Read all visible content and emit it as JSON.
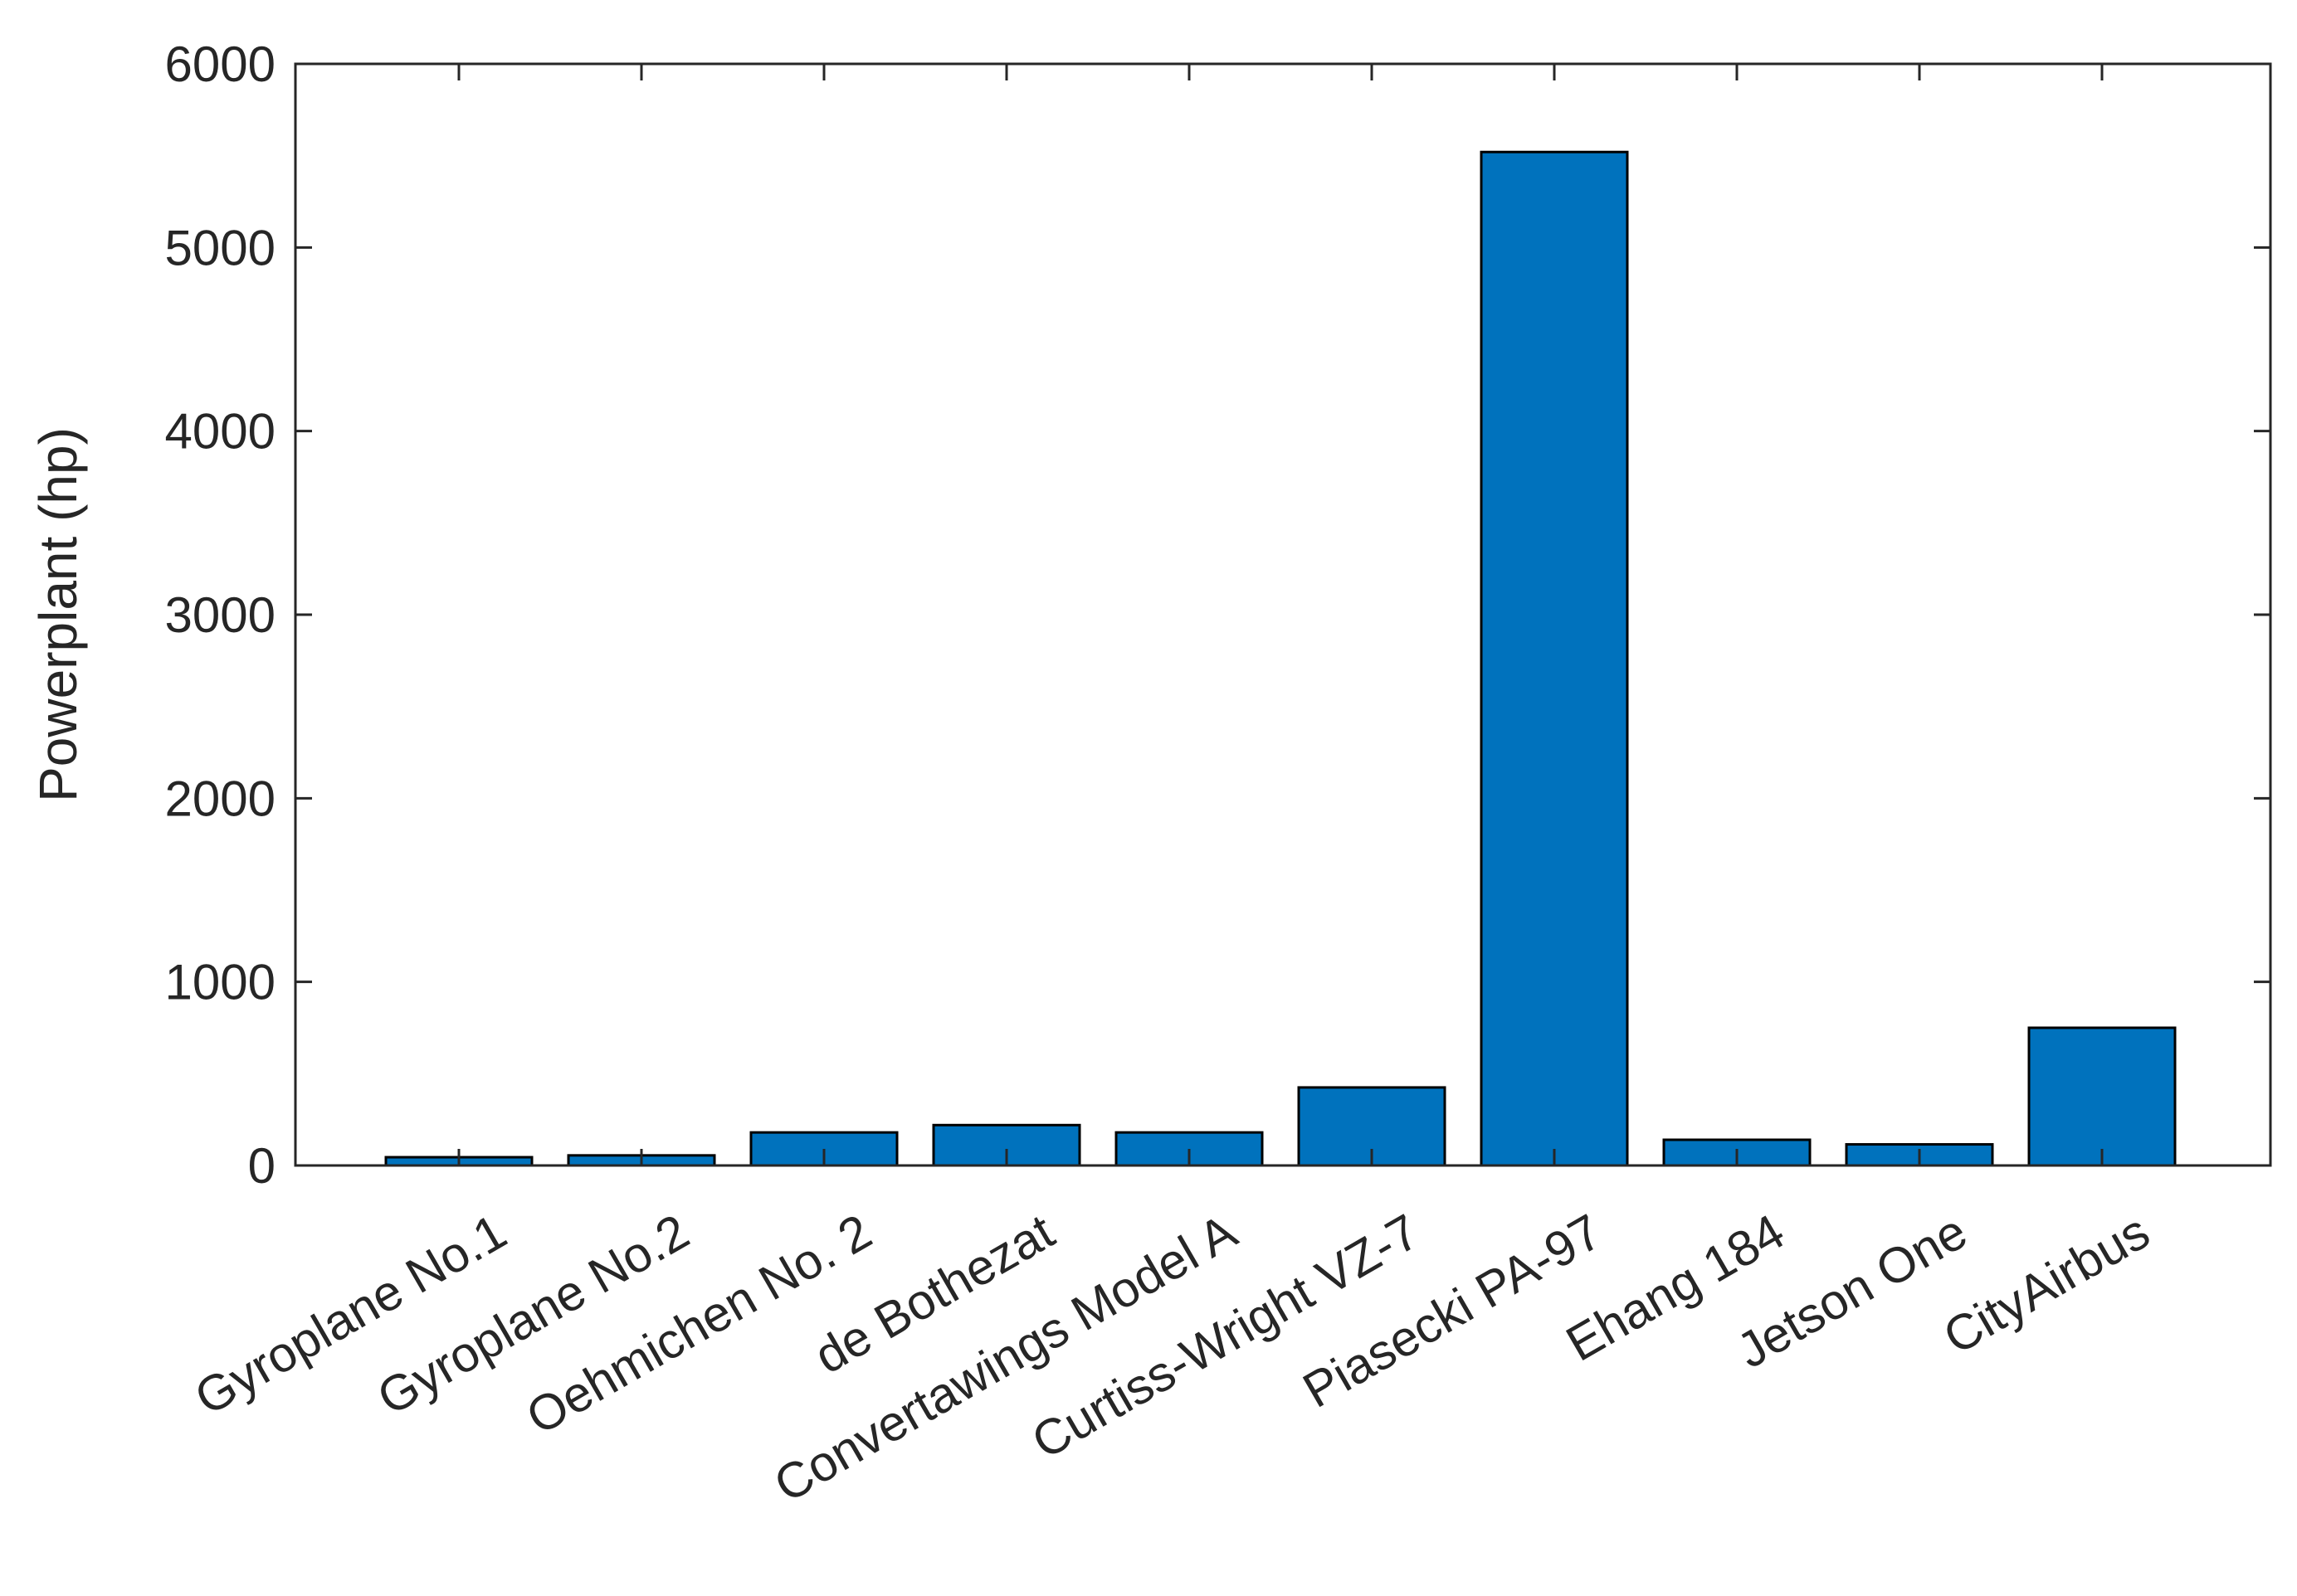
{
  "chart_data": {
    "type": "bar",
    "title": "",
    "xlabel": "",
    "ylabel": "Powerplant (hp)",
    "categories": [
      "Gyroplane No.1",
      "Gyroplane No.2",
      "Oehmichen No. 2",
      "de Bothezat",
      "Convertawings Model A",
      "Curtiss-Wright VZ-7",
      "Piasecki PA-97",
      "Ehang 184",
      "Jetson One",
      "CityAirbus"
    ],
    "values": [
      45,
      55,
      180,
      220,
      180,
      425,
      5520,
      140,
      115,
      750
    ],
    "ylim": [
      0,
      6000
    ],
    "yticks": [
      0,
      1000,
      2000,
      3000,
      4000,
      5000,
      6000
    ],
    "yticklabels": [
      "0",
      "1000",
      "2000",
      "3000",
      "4000",
      "5000",
      "6000"
    ],
    "grid": false,
    "legend": "none",
    "colors": {
      "bar": "#0072BD",
      "edge": "#000000",
      "axis": "#262626"
    }
  }
}
